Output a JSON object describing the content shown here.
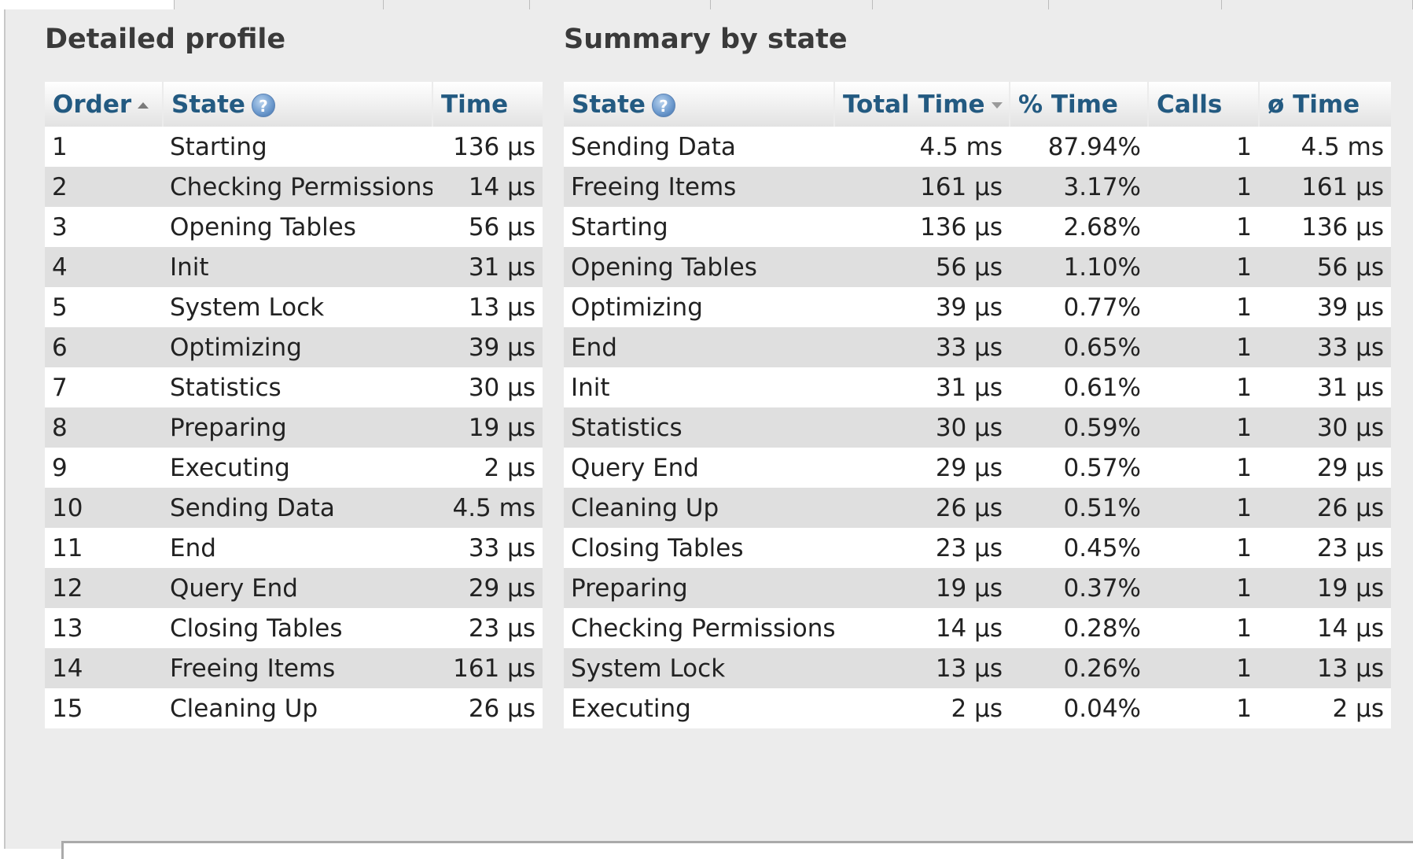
{
  "detailed": {
    "title": "Detailed profile",
    "columns": {
      "order": "Order",
      "state": "State",
      "time": "Time"
    },
    "rows": [
      {
        "order": "1",
        "state": "Starting",
        "time": "136 µs"
      },
      {
        "order": "2",
        "state": "Checking Permissions",
        "time": "14 µs"
      },
      {
        "order": "3",
        "state": "Opening Tables",
        "time": "56 µs"
      },
      {
        "order": "4",
        "state": "Init",
        "time": "31 µs"
      },
      {
        "order": "5",
        "state": "System Lock",
        "time": "13 µs"
      },
      {
        "order": "6",
        "state": "Optimizing",
        "time": "39 µs"
      },
      {
        "order": "7",
        "state": "Statistics",
        "time": "30 µs"
      },
      {
        "order": "8",
        "state": "Preparing",
        "time": "19 µs"
      },
      {
        "order": "9",
        "state": "Executing",
        "time": "2 µs"
      },
      {
        "order": "10",
        "state": "Sending Data",
        "time": "4.5 ms"
      },
      {
        "order": "11",
        "state": "End",
        "time": "33 µs"
      },
      {
        "order": "12",
        "state": "Query End",
        "time": "29 µs"
      },
      {
        "order": "13",
        "state": "Closing Tables",
        "time": "23 µs"
      },
      {
        "order": "14",
        "state": "Freeing Items",
        "time": "161 µs"
      },
      {
        "order": "15",
        "state": "Cleaning Up",
        "time": "26 µs"
      }
    ]
  },
  "summary": {
    "title": "Summary by state",
    "columns": {
      "state": "State",
      "total_time": "Total Time",
      "pct_time": "% Time",
      "calls": "Calls",
      "avg_time": "ø Time"
    },
    "rows": [
      {
        "state": "Sending Data",
        "total": "4.5 ms",
        "pct": "87.94%",
        "calls": "1",
        "avg": "4.5 ms"
      },
      {
        "state": "Freeing Items",
        "total": "161 µs",
        "pct": "3.17%",
        "calls": "1",
        "avg": "161 µs"
      },
      {
        "state": "Starting",
        "total": "136 µs",
        "pct": "2.68%",
        "calls": "1",
        "avg": "136 µs"
      },
      {
        "state": "Opening Tables",
        "total": "56 µs",
        "pct": "1.10%",
        "calls": "1",
        "avg": "56 µs"
      },
      {
        "state": "Optimizing",
        "total": "39 µs",
        "pct": "0.77%",
        "calls": "1",
        "avg": "39 µs"
      },
      {
        "state": "End",
        "total": "33 µs",
        "pct": "0.65%",
        "calls": "1",
        "avg": "33 µs"
      },
      {
        "state": "Init",
        "total": "31 µs",
        "pct": "0.61%",
        "calls": "1",
        "avg": "31 µs"
      },
      {
        "state": "Statistics",
        "total": "30 µs",
        "pct": "0.59%",
        "calls": "1",
        "avg": "30 µs"
      },
      {
        "state": "Query End",
        "total": "29 µs",
        "pct": "0.57%",
        "calls": "1",
        "avg": "29 µs"
      },
      {
        "state": "Cleaning Up",
        "total": "26 µs",
        "pct": "0.51%",
        "calls": "1",
        "avg": "26 µs"
      },
      {
        "state": "Closing Tables",
        "total": "23 µs",
        "pct": "0.45%",
        "calls": "1",
        "avg": "23 µs"
      },
      {
        "state": "Preparing",
        "total": "19 µs",
        "pct": "0.37%",
        "calls": "1",
        "avg": "19 µs"
      },
      {
        "state": "Checking Permissions",
        "total": "14 µs",
        "pct": "0.28%",
        "calls": "1",
        "avg": "14 µs"
      },
      {
        "state": "System Lock",
        "total": "13 µs",
        "pct": "0.26%",
        "calls": "1",
        "avg": "13 µs"
      },
      {
        "state": "Executing",
        "total": "2 µs",
        "pct": "0.04%",
        "calls": "1",
        "avg": "2 µs"
      }
    ]
  },
  "icons": {
    "help": "help-icon",
    "sort_ascending": "sort-ascending-icon",
    "sort_descending": "sort-descending-icon"
  },
  "colors": {
    "header_text": "#235a81",
    "row_alt": "#dfdfdf",
    "panel_bg": "#ececec"
  }
}
